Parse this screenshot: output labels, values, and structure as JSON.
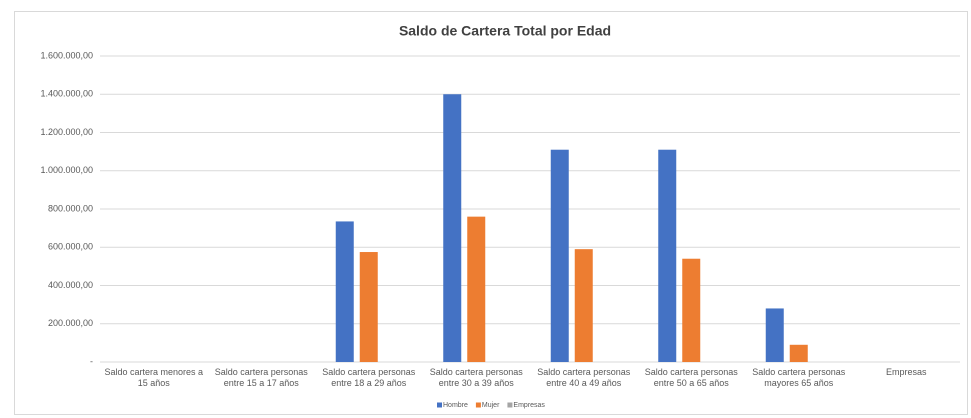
{
  "chart_data": {
    "type": "bar",
    "title": "Saldo de Cartera Total por Edad",
    "categories": [
      "Saldo cartera menores a 15 años",
      "Saldo cartera personas entre 15 a 17 años",
      "Saldo cartera personas entre 18 a 29 años",
      "Saldo cartera personas entre 30 a 39 años",
      "Saldo cartera personas entre 40 a 49 años",
      "Saldo cartera personas entre 50 a 65 años",
      "Saldo cartera personas mayores 65 años",
      "Empresas"
    ],
    "series": [
      {
        "name": "Hombre",
        "color": "#4472c4",
        "values": [
          0,
          0,
          735000,
          1400000,
          1110000,
          1110000,
          280000,
          0
        ]
      },
      {
        "name": "Mujer",
        "color": "#ed7d31",
        "values": [
          0,
          0,
          575000,
          760000,
          590000,
          540000,
          90000,
          0
        ]
      },
      {
        "name": "Empresas",
        "color": "#a5a5a5",
        "values": [
          0,
          0,
          0,
          0,
          0,
          0,
          0,
          0
        ]
      }
    ],
    "ylim": [
      0,
      1600000
    ],
    "yticks": [
      {
        "value": 0,
        "label": "-"
      },
      {
        "value": 200000,
        "label": "200.000,00"
      },
      {
        "value": 400000,
        "label": "400.000,00"
      },
      {
        "value": 600000,
        "label": "600.000,00"
      },
      {
        "value": 800000,
        "label": "800.000,00"
      },
      {
        "value": 1000000,
        "label": "1.000.000,00"
      },
      {
        "value": 1200000,
        "label": "1.200.000,00"
      },
      {
        "value": 1400000,
        "label": "1.400.000,00"
      },
      {
        "value": 1600000,
        "label": "1.600.000,00"
      }
    ],
    "grid": true,
    "legend": "bottom"
  }
}
